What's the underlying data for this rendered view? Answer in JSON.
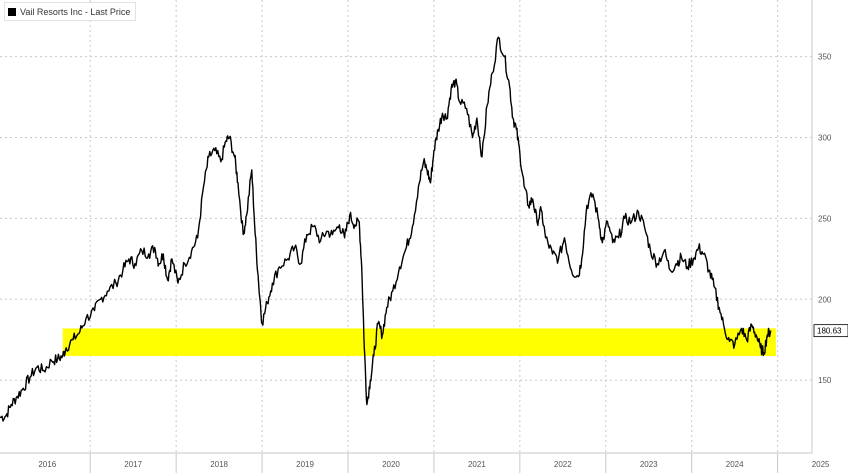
{
  "chart_data": {
    "type": "line",
    "title": "",
    "xlabel": "",
    "ylabel": "",
    "legend_position": "top-left",
    "grid": true,
    "y_axis_side": "right",
    "x_tick_labels": [
      "2016",
      "2017",
      "2018",
      "2019",
      "2020",
      "2021",
      "2022",
      "2023",
      "2024",
      "2025"
    ],
    "y_ticks": [
      150,
      200,
      250,
      300,
      350
    ],
    "y_tick_labels": [
      "150",
      "200",
      "250",
      "300",
      "350"
    ],
    "xlim": [
      2015.95,
      2025.4
    ],
    "ylim": [
      105,
      385
    ],
    "series": [
      {
        "name": "Vail Resorts Inc - Last Price",
        "color": "#000000",
        "points": [
          [
            2015.95,
            127
          ],
          [
            2016.02,
            128
          ],
          [
            2016.08,
            135
          ],
          [
            2016.15,
            140
          ],
          [
            2016.22,
            145
          ],
          [
            2016.3,
            152
          ],
          [
            2016.38,
            158
          ],
          [
            2016.46,
            156
          ],
          [
            2016.55,
            162
          ],
          [
            2016.62,
            163
          ],
          [
            2016.68,
            165
          ],
          [
            2016.72,
            170
          ],
          [
            2016.8,
            175
          ],
          [
            2016.88,
            180
          ],
          [
            2016.95,
            188
          ],
          [
            2017.05,
            193
          ],
          [
            2017.12,
            200
          ],
          [
            2017.2,
            205
          ],
          [
            2017.3,
            210
          ],
          [
            2017.38,
            218
          ],
          [
            2017.45,
            225
          ],
          [
            2017.52,
            222
          ],
          [
            2017.6,
            230
          ],
          [
            2017.68,
            228
          ],
          [
            2017.75,
            232
          ],
          [
            2017.8,
            222
          ],
          [
            2017.85,
            228
          ],
          [
            2017.9,
            212
          ],
          [
            2017.95,
            225
          ],
          [
            2018.02,
            210
          ],
          [
            2018.1,
            222
          ],
          [
            2018.18,
            230
          ],
          [
            2018.25,
            238
          ],
          [
            2018.32,
            270
          ],
          [
            2018.38,
            288
          ],
          [
            2018.45,
            292
          ],
          [
            2018.52,
            285
          ],
          [
            2018.58,
            298
          ],
          [
            2018.62,
            300
          ],
          [
            2018.68,
            288
          ],
          [
            2018.72,
            272
          ],
          [
            2018.78,
            240
          ],
          [
            2018.82,
            252
          ],
          [
            2018.88,
            280
          ],
          [
            2018.92,
            240
          ],
          [
            2018.96,
            210
          ],
          [
            2019.0,
            185
          ],
          [
            2019.06,
            198
          ],
          [
            2019.12,
            210
          ],
          [
            2019.2,
            220
          ],
          [
            2019.3,
            225
          ],
          [
            2019.38,
            232
          ],
          [
            2019.45,
            222
          ],
          [
            2019.52,
            240
          ],
          [
            2019.6,
            245
          ],
          [
            2019.68,
            236
          ],
          [
            2019.75,
            242
          ],
          [
            2019.82,
            240
          ],
          [
            2019.9,
            246
          ],
          [
            2019.96,
            238
          ],
          [
            2020.02,
            252
          ],
          [
            2020.08,
            246
          ],
          [
            2020.13,
            248
          ],
          [
            2020.16,
            220
          ],
          [
            2020.19,
            170
          ],
          [
            2020.22,
            135
          ],
          [
            2020.26,
            150
          ],
          [
            2020.3,
            165
          ],
          [
            2020.35,
            185
          ],
          [
            2020.4,
            178
          ],
          [
            2020.45,
            195
          ],
          [
            2020.52,
            205
          ],
          [
            2020.6,
            220
          ],
          [
            2020.68,
            232
          ],
          [
            2020.75,
            245
          ],
          [
            2020.82,
            270
          ],
          [
            2020.88,
            285
          ],
          [
            2020.92,
            280
          ],
          [
            2020.96,
            272
          ],
          [
            2021.0,
            292
          ],
          [
            2021.05,
            305
          ],
          [
            2021.1,
            315
          ],
          [
            2021.15,
            312
          ],
          [
            2021.2,
            330
          ],
          [
            2021.25,
            335
          ],
          [
            2021.3,
            322
          ],
          [
            2021.38,
            318
          ],
          [
            2021.45,
            300
          ],
          [
            2021.5,
            312
          ],
          [
            2021.56,
            288
          ],
          [
            2021.62,
            320
          ],
          [
            2021.68,
            340
          ],
          [
            2021.75,
            362
          ],
          [
            2021.82,
            350
          ],
          [
            2021.88,
            332
          ],
          [
            2021.92,
            312
          ],
          [
            2021.96,
            305
          ],
          [
            2022.0,
            290
          ],
          [
            2022.05,
            270
          ],
          [
            2022.1,
            258
          ],
          [
            2022.15,
            262
          ],
          [
            2022.2,
            248
          ],
          [
            2022.25,
            255
          ],
          [
            2022.3,
            238
          ],
          [
            2022.38,
            228
          ],
          [
            2022.45,
            225
          ],
          [
            2022.52,
            238
          ],
          [
            2022.6,
            218
          ],
          [
            2022.68,
            214
          ],
          [
            2022.72,
            225
          ],
          [
            2022.78,
            258
          ],
          [
            2022.85,
            265
          ],
          [
            2022.92,
            248
          ],
          [
            2022.96,
            235
          ],
          [
            2023.02,
            248
          ],
          [
            2023.08,
            235
          ],
          [
            2023.15,
            238
          ],
          [
            2023.22,
            250
          ],
          [
            2023.3,
            248
          ],
          [
            2023.38,
            254
          ],
          [
            2023.45,
            245
          ],
          [
            2023.52,
            230
          ],
          [
            2023.6,
            222
          ],
          [
            2023.68,
            230
          ],
          [
            2023.75,
            218
          ],
          [
            2023.82,
            222
          ],
          [
            2023.88,
            226
          ],
          [
            2023.95,
            220
          ],
          [
            2024.02,
            225
          ],
          [
            2024.08,
            232
          ],
          [
            2024.14,
            228
          ],
          [
            2024.2,
            218
          ],
          [
            2024.26,
            208
          ],
          [
            2024.32,
            195
          ],
          [
            2024.38,
            182
          ],
          [
            2024.44,
            174
          ],
          [
            2024.5,
            172
          ],
          [
            2024.58,
            182
          ],
          [
            2024.64,
            175
          ],
          [
            2024.7,
            184
          ],
          [
            2024.75,
            178
          ],
          [
            2024.8,
            170
          ],
          [
            2024.84,
            167
          ],
          [
            2024.88,
            178
          ],
          [
            2024.92,
            180.63
          ]
        ]
      }
    ],
    "last_value_label": "180.63",
    "highlight_band": {
      "y_from": 165,
      "y_to": 182,
      "x_from": 2016.68,
      "x_to": 2024.98,
      "color": "#ffff00"
    }
  },
  "grid_color": "#c8c8c8"
}
